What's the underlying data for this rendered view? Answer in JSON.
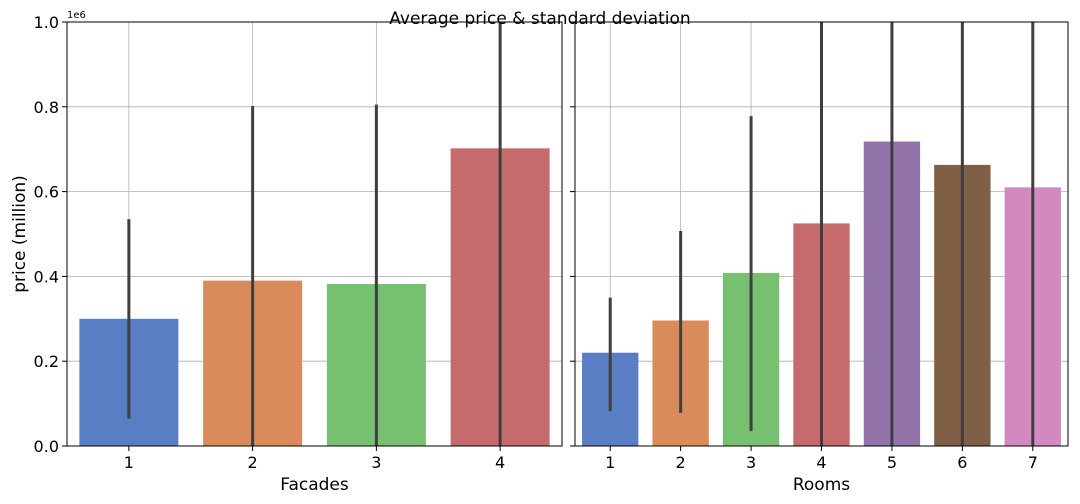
{
  "figure": {
    "title": "Average price & standard deviation",
    "ylabel": "price (million)",
    "y_offset_label": "1e6"
  },
  "chart_data": [
    {
      "type": "bar",
      "xlabel": "Facades",
      "ylabel": "price (million)",
      "ylim": [
        0,
        1000000
      ],
      "yticks": [
        0,
        200000,
        400000,
        600000,
        800000,
        1000000
      ],
      "ytick_labels": [
        "0.0",
        "0.2",
        "0.4",
        "0.6",
        "0.8",
        "1.0"
      ],
      "grid": true,
      "categories": [
        "1",
        "2",
        "3",
        "4"
      ],
      "values": [
        300000,
        390000,
        382000,
        702000
      ],
      "error_low": [
        65000,
        0,
        0,
        0
      ],
      "error_high": [
        535000,
        802000,
        805000,
        1000000
      ],
      "colors": [
        "#5a7ec4",
        "#d98b5c",
        "#77c070",
        "#c56b6b"
      ]
    },
    {
      "type": "bar",
      "xlabel": "Rooms",
      "ylim": [
        0,
        1000000
      ],
      "grid": true,
      "categories": [
        "1",
        "2",
        "3",
        "4",
        "5",
        "6",
        "7"
      ],
      "values": [
        220000,
        296000,
        408000,
        525000,
        718000,
        663000,
        610000
      ],
      "error_low": [
        82000,
        78000,
        35000,
        0,
        0,
        0,
        0
      ],
      "error_high": [
        350000,
        507000,
        778000,
        1000000,
        1000000,
        1000000,
        1000000
      ],
      "colors": [
        "#5a7ec4",
        "#d98b5c",
        "#77c070",
        "#c56b6b",
        "#9274ab",
        "#7f5f45",
        "#d189bf"
      ]
    }
  ]
}
